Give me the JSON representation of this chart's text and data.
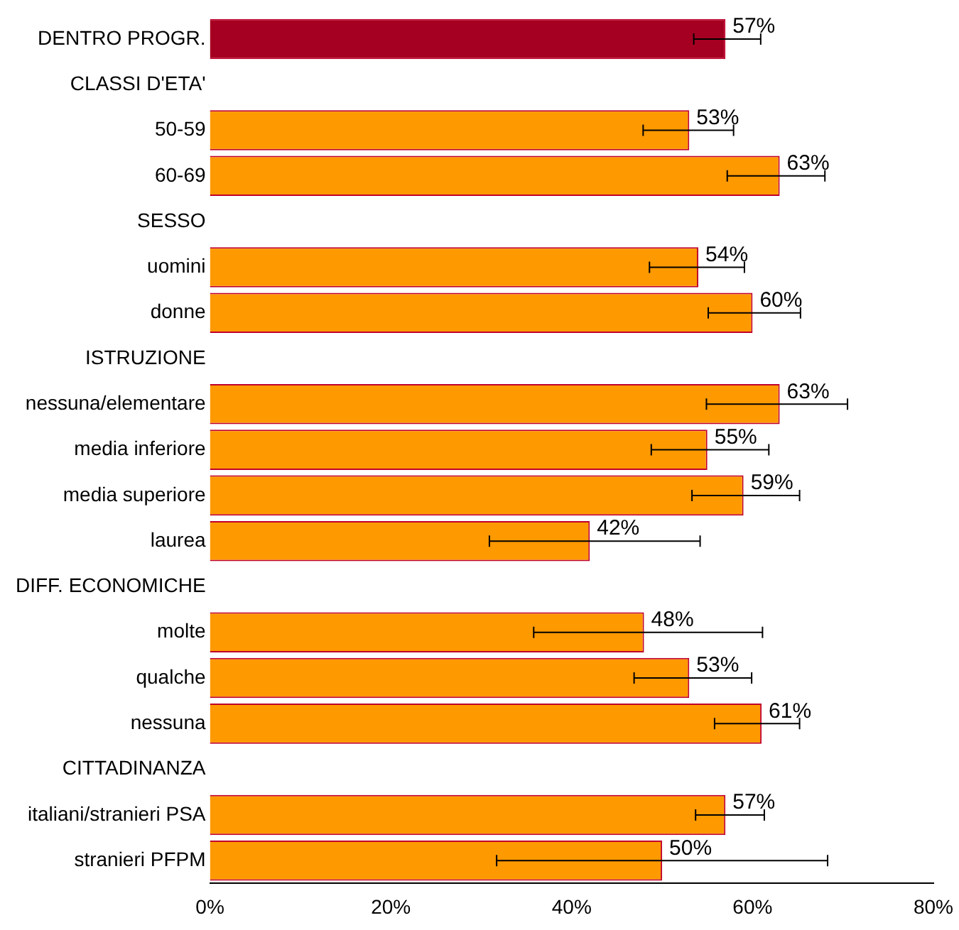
{
  "chart_data": {
    "type": "bar",
    "orientation": "horizontal",
    "categories": [
      "DENTRO PROGR.",
      "CLASSI D'ETA'",
      "50-59",
      "60-69",
      "SESSO",
      "uomini",
      "donne",
      "ISTRUZIONE",
      "nessuna/elementare",
      "media inferiore",
      "media superiore",
      "laurea",
      "DIFF. ECONOMICHE",
      "molte",
      "qualche",
      "nessuna",
      "CITTADINANZA",
      "italiani/stranieri PSA",
      "stranieri PFPM"
    ],
    "values": [
      57,
      null,
      53,
      63,
      null,
      54,
      60,
      null,
      63,
      55,
      59,
      42,
      null,
      48,
      53,
      61,
      null,
      57,
      50
    ],
    "colors": [
      "#a50021",
      "#ff9900",
      "#ff9900",
      "#ff9900",
      "#ff9900",
      "#ff9900",
      "#ff9900",
      "#ff9900",
      "#ff9900",
      "#ff9900",
      "#ff9900",
      "#ff9900",
      "#ff9900",
      "#ff9900",
      "#ff9900",
      "#ff9900",
      "#ff9900",
      "#ff9900",
      "#ff9900"
    ],
    "errors": [
      [
        53.5,
        60.9
      ],
      null,
      [
        47.9,
        57.9
      ],
      [
        57.2,
        68
      ],
      null,
      [
        48.6,
        59.1
      ],
      [
        55.1,
        65.3
      ],
      null,
      [
        54.9,
        70.5
      ],
      [
        48.8,
        61.8
      ],
      [
        53.3,
        65.2
      ],
      [
        30.9,
        54.2
      ],
      null,
      [
        35.8,
        61.1
      ],
      [
        46.9,
        59.9
      ],
      [
        55.8,
        65.2
      ],
      null,
      [
        53.7,
        61.3
      ],
      [
        31.7,
        68.3
      ]
    ],
    "value_labels": [
      "57%",
      null,
      "53%",
      "63%",
      null,
      "54%",
      "60%",
      null,
      "63%",
      "55%",
      "59%",
      "42%",
      null,
      "48%",
      "53%",
      "61%",
      null,
      "57%",
      "50%"
    ],
    "xlim": [
      0,
      80
    ],
    "xticks": [
      {
        "value": 0,
        "label": "0%"
      },
      {
        "value": 20,
        "label": "20%"
      },
      {
        "value": 40,
        "label": "40%"
      },
      {
        "value": 60,
        "label": "60%"
      },
      {
        "value": 80,
        "label": "80%"
      }
    ],
    "grid": false,
    "legend": false
  }
}
